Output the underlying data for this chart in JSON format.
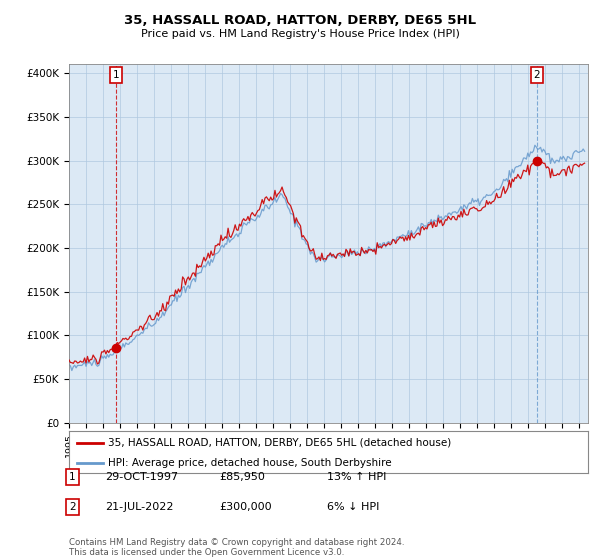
{
  "title": "35, HASSALL ROAD, HATTON, DERBY, DE65 5HL",
  "subtitle": "Price paid vs. HM Land Registry's House Price Index (HPI)",
  "ylabel_ticks": [
    "£0",
    "£50K",
    "£100K",
    "£150K",
    "£200K",
    "£250K",
    "£300K",
    "£350K",
    "£400K"
  ],
  "ylim": [
    0,
    410000
  ],
  "xlim_start": 1995.0,
  "xlim_end": 2025.5,
  "sale1_date": "29-OCT-1997",
  "sale1_price": 85950,
  "sale2_date": "21-JUL-2022",
  "sale2_price": 300000,
  "sale1_hpi": "13% ↑ HPI",
  "sale2_hpi": "6% ↓ HPI",
  "legend_line1": "35, HASSALL ROAD, HATTON, DERBY, DE65 5HL (detached house)",
  "legend_line2": "HPI: Average price, detached house, South Derbyshire",
  "footer": "Contains HM Land Registry data © Crown copyright and database right 2024.\nThis data is licensed under the Open Government Licence v3.0.",
  "line_color_red": "#cc0000",
  "line_color_blue": "#6699cc",
  "bg_chart": "#dce9f5",
  "background_color": "#ffffff",
  "grid_color": "#b0c8e0"
}
